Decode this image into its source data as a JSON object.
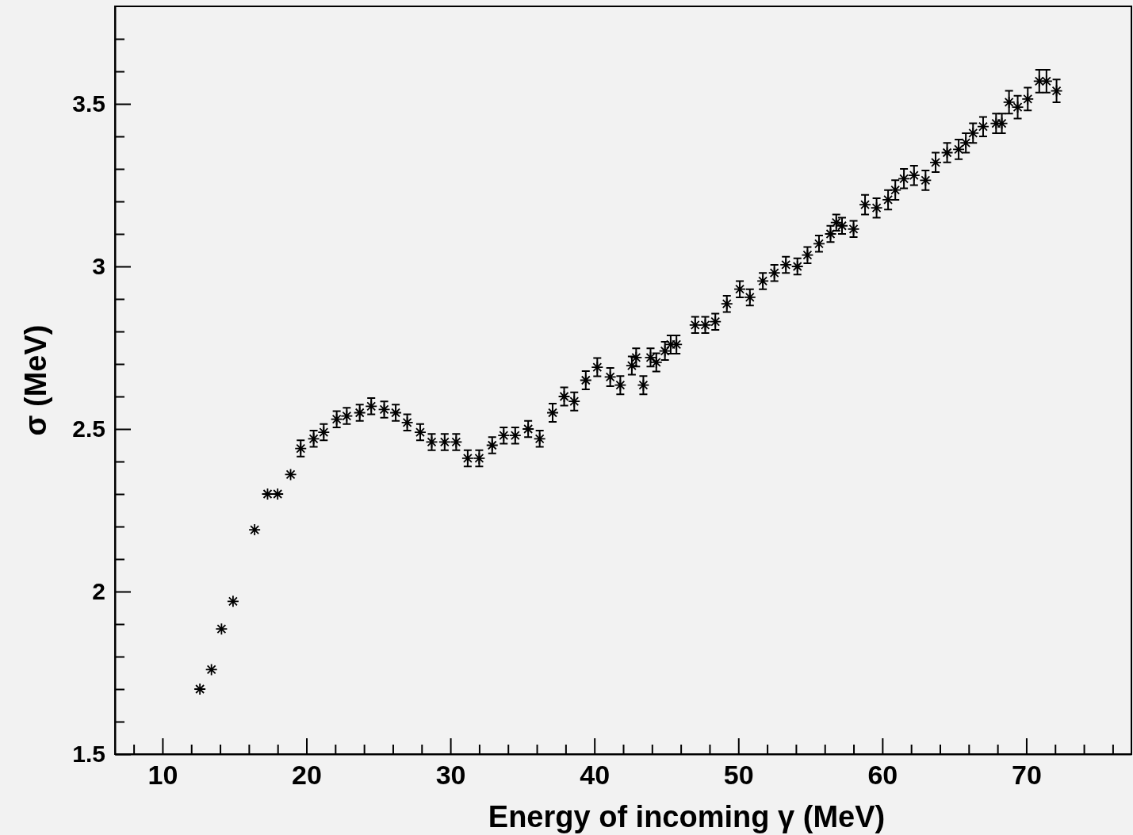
{
  "chart_data": {
    "type": "scatter",
    "xlabel": "Energy of incoming γ (MeV)",
    "ylabel": "σ (MeV)",
    "marker": "cross",
    "grid": false,
    "color": "#000000",
    "x": [
      12.6,
      13.4,
      14.1,
      14.9,
      16.4,
      17.3,
      18.0,
      18.9,
      19.6,
      20.5,
      21.2,
      22.1,
      22.8,
      23.7,
      24.5,
      25.4,
      26.2,
      27.0,
      27.9,
      28.7,
      29.6,
      30.4,
      31.2,
      32.0,
      32.9,
      33.7,
      34.5,
      35.4,
      36.2,
      37.1,
      37.9,
      38.6,
      39.4,
      40.2,
      41.1,
      41.8,
      42.6,
      42.9,
      43.4,
      43.9,
      44.3,
      44.9,
      45.3,
      45.7,
      47.0,
      47.7,
      48.4,
      49.2,
      50.1,
      50.8,
      51.7,
      52.5,
      53.3,
      54.1,
      54.8,
      55.6,
      56.4,
      56.8,
      57.2,
      58.0,
      58.8,
      59.6,
      60.4,
      60.9,
      61.5,
      62.2,
      63.0,
      63.7,
      64.5,
      65.3,
      65.8,
      66.3,
      67.0,
      67.9,
      68.3,
      68.8,
      69.4,
      70.1,
      70.9,
      71.4,
      72.1
    ],
    "values": [
      1.7,
      1.76,
      1.885,
      1.97,
      2.19,
      2.3,
      2.3,
      2.36,
      2.44,
      2.47,
      2.49,
      2.53,
      2.54,
      2.55,
      2.57,
      2.56,
      2.55,
      2.52,
      2.49,
      2.46,
      2.46,
      2.46,
      2.41,
      2.41,
      2.45,
      2.48,
      2.48,
      2.5,
      2.47,
      2.55,
      2.6,
      2.585,
      2.65,
      2.69,
      2.66,
      2.635,
      2.695,
      2.72,
      2.635,
      2.72,
      2.705,
      2.74,
      2.76,
      2.76,
      2.82,
      2.82,
      2.83,
      2.885,
      2.93,
      2.905,
      2.955,
      2.98,
      3.005,
      3.0,
      3.035,
      3.07,
      3.1,
      3.135,
      3.125,
      3.115,
      3.19,
      3.18,
      3.205,
      3.235,
      3.27,
      3.28,
      3.265,
      3.32,
      3.35,
      3.36,
      3.38,
      3.41,
      3.43,
      3.44,
      3.44,
      3.505,
      3.49,
      3.515,
      3.57,
      3.57,
      3.54
    ],
    "errors": [
      null,
      null,
      null,
      null,
      null,
      null,
      null,
      null,
      0.025,
      0.025,
      0.025,
      0.025,
      0.025,
      0.025,
      0.025,
      0.025,
      0.025,
      0.025,
      0.025,
      0.025,
      0.025,
      0.025,
      0.025,
      0.025,
      0.025,
      0.025,
      0.025,
      0.025,
      0.025,
      0.028,
      0.028,
      0.028,
      0.028,
      0.028,
      0.028,
      0.028,
      0.028,
      0.028,
      0.028,
      0.028,
      0.028,
      0.028,
      0.028,
      0.028,
      0.025,
      0.025,
      0.025,
      0.025,
      0.025,
      0.025,
      0.025,
      0.025,
      0.025,
      0.025,
      0.025,
      0.025,
      0.025,
      0.025,
      0.025,
      0.025,
      0.03,
      0.03,
      0.03,
      0.03,
      0.03,
      0.03,
      0.03,
      0.03,
      0.03,
      0.03,
      0.03,
      0.03,
      0.03,
      0.03,
      0.03,
      0.035,
      0.035,
      0.035,
      0.035,
      0.035,
      0.035
    ],
    "xlim": [
      6.7,
      77.3
    ],
    "ylim": [
      1.5,
      3.8
    ],
    "xticks": [
      {
        "value": 8,
        "label": null
      },
      10,
      {
        "value": 12,
        "label": null
      },
      {
        "value": 14,
        "label": null
      },
      {
        "value": 16,
        "label": null
      },
      {
        "value": 18,
        "label": null
      },
      20,
      {
        "value": 22,
        "label": null
      },
      {
        "value": 24,
        "label": null
      },
      {
        "value": 26,
        "label": null
      },
      {
        "value": 28,
        "label": null
      },
      30,
      {
        "value": 32,
        "label": null
      },
      {
        "value": 34,
        "label": null
      },
      {
        "value": 36,
        "label": null
      },
      {
        "value": 38,
        "label": null
      },
      40,
      {
        "value": 42,
        "label": null
      },
      {
        "value": 44,
        "label": null
      },
      {
        "value": 46,
        "label": null
      },
      {
        "value": 48,
        "label": null
      },
      50,
      {
        "value": 52,
        "label": null
      },
      {
        "value": 54,
        "label": null
      },
      {
        "value": 56,
        "label": null
      },
      {
        "value": 58,
        "label": null
      },
      60,
      {
        "value": 62,
        "label": null
      },
      {
        "value": 64,
        "label": null
      },
      {
        "value": 66,
        "label": null
      },
      {
        "value": 68,
        "label": null
      },
      70,
      {
        "value": 72,
        "label": null
      },
      {
        "value": 74,
        "label": null
      },
      {
        "value": 76,
        "label": null
      }
    ],
    "yticks": [
      1.5,
      {
        "value": 1.6,
        "label": null
      },
      {
        "value": 1.7,
        "label": null
      },
      {
        "value": 1.8,
        "label": null
      },
      {
        "value": 1.9,
        "label": null
      },
      2,
      {
        "value": 2.1,
        "label": null
      },
      {
        "value": 2.2,
        "label": null
      },
      {
        "value": 2.3,
        "label": null
      },
      {
        "value": 2.4,
        "label": null
      },
      2.5,
      {
        "value": 2.6,
        "label": null
      },
      {
        "value": 2.7,
        "label": null
      },
      {
        "value": 2.8,
        "label": null
      },
      {
        "value": 2.9,
        "label": null
      },
      3,
      {
        "value": 3.1,
        "label": null
      },
      {
        "value": 3.2,
        "label": null
      },
      {
        "value": 3.3,
        "label": null
      },
      {
        "value": 3.4,
        "label": null
      },
      3.5,
      {
        "value": 3.6,
        "label": null
      },
      {
        "value": 3.7,
        "label": null
      }
    ]
  }
}
